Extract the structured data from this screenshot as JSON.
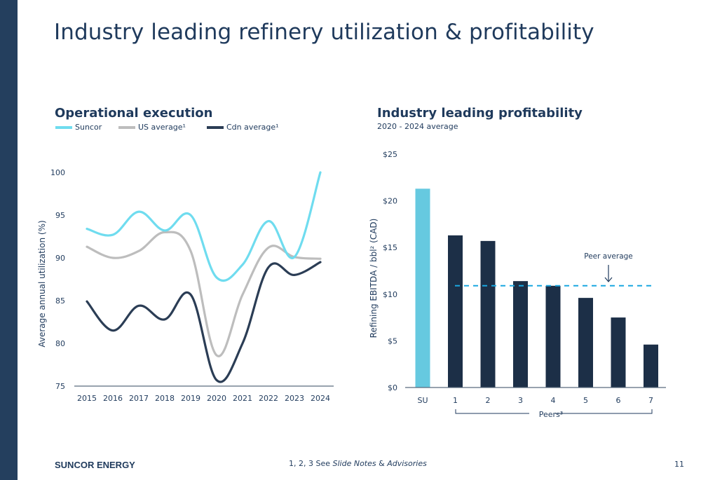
{
  "slide": {
    "title": "Industry leading refinery utilization & profitability",
    "footer_brand": "SUNCOR ENERGY",
    "footer_note_prefix": "1, 2, 3 See ",
    "footer_note_italic1": "Slide Notes",
    "footer_note_amp": " & ",
    "footer_note_italic2": "Advisories",
    "page_number": "11"
  },
  "colors": {
    "sidebar": "#243f5e",
    "suncor": "#6fdcef",
    "us_average": "#bdbdbd",
    "cdn_average": "#2b3d55",
    "su_bar": "#66c9e0",
    "peer_bar": "#1c2f47",
    "peer_avg_line": "#1aa7e0"
  },
  "chart_data": [
    {
      "type": "line",
      "title": "Operational execution",
      "xlabel": "",
      "ylabel": "Average annual utilization  (%)",
      "x": [
        "2015",
        "2016",
        "2017",
        "2018",
        "2019",
        "2020",
        "2021",
        "2022",
        "2023",
        "2024"
      ],
      "ylim": [
        75,
        100
      ],
      "yticks": [
        "75",
        "80",
        "85",
        "90",
        "95",
        "100"
      ],
      "grid": false,
      "legend": "top-left",
      "series": [
        {
          "name": "Suncor",
          "values": [
            93.4,
            92.7,
            95.4,
            93.2,
            95.0,
            87.7,
            89.2,
            94.3,
            90.1,
            100.0
          ]
        },
        {
          "name": "US average¹",
          "values": [
            91.3,
            90.0,
            90.8,
            93.0,
            90.8,
            78.6,
            85.7,
            91.2,
            90.1,
            89.9
          ]
        },
        {
          "name": "Cdn average¹",
          "values": [
            84.9,
            81.5,
            84.4,
            82.8,
            85.7,
            75.7,
            80.0,
            88.9,
            88.0,
            89.5
          ]
        }
      ]
    },
    {
      "type": "bar",
      "title": "Industry leading profitability",
      "subtitle": "2020 - 2024 average",
      "xlabel": "Peers³",
      "ylabel": "Refining EBITDA / bbl² (CAD)",
      "categories": [
        "SU",
        "1",
        "2",
        "3",
        "4",
        "5",
        "6",
        "7"
      ],
      "values": [
        21.3,
        16.3,
        15.7,
        11.4,
        10.9,
        9.6,
        7.5,
        4.6
      ],
      "ylim": [
        0,
        25
      ],
      "yticks": [
        "$0",
        "$5",
        "$10",
        "$15",
        "$20",
        "$25"
      ],
      "grid": false,
      "annotations": [
        {
          "label": "Peer average",
          "value": 10.9,
          "style": "dashed-line"
        }
      ]
    }
  ]
}
